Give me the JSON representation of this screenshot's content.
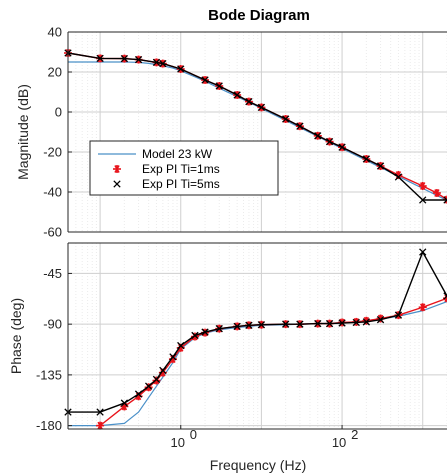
{
  "chart_data": {
    "type": "line",
    "title": "Bode Diagram",
    "xlabel": "Frequency  (Hz)",
    "x_scale": "log",
    "xlim": [
      0.04,
      2000
    ],
    "x_tick_labels": [
      {
        "value": 1,
        "base": "10",
        "exp": "0"
      },
      {
        "value": 100,
        "base": "10",
        "exp": "2"
      }
    ],
    "grid": true,
    "legend_position": "middle-left",
    "colors": {
      "model": "#4a90c8",
      "ti1": "#e8131b",
      "ti5": "#000000"
    },
    "panels": [
      {
        "name": "magnitude",
        "ylabel": "Magnitude (dB)",
        "ylim": [
          -60,
          40
        ],
        "yticks": [
          40,
          20,
          0,
          -20,
          -40,
          -60
        ],
        "series": [
          {
            "name": "Model 23 kW",
            "style": "line",
            "x": [
              0.04,
              0.1,
              0.2,
              0.3,
              0.4,
              0.5,
              0.6,
              0.7,
              0.8,
              1,
              1.5,
              2,
              3,
              5,
              7,
              10,
              20,
              30,
              50,
              70,
              100,
              200,
              300,
              500,
              700,
              1000,
              1500,
              2000
            ],
            "y": [
              25,
              25,
              25,
              24.8,
              24.3,
              23.7,
              23.1,
              22.5,
              22,
              20.6,
              17.6,
              15.4,
              11.9,
              7.7,
              4.9,
              1.8,
              -4.2,
              -7.8,
              -12.2,
              -15.2,
              -18.2,
              -24.2,
              -27.7,
              -32.2,
              -35.1,
              -38.2,
              -41.7,
              -44.2
            ]
          },
          {
            "name": "Exp PI Ti=1ms",
            "style": "marker-line",
            "marker": "asterisk",
            "x": [
              0.04,
              0.1,
              0.2,
              0.3,
              0.5,
              0.6,
              1,
              2,
              3,
              5,
              7,
              10,
              20,
              30,
              50,
              70,
              100,
              200,
              300,
              500,
              1000,
              1500,
              2000
            ],
            "y": [
              29.5,
              26.8,
              26.7,
              26.2,
              24.8,
              24.2,
              21.5,
              16,
              13,
              8.5,
              5.2,
              2.3,
              -3.5,
              -7.1,
              -11.9,
              -14.8,
              -17.6,
              -23.5,
              -27,
              -31.5,
              -37,
              -40.5,
              -43.8
            ]
          },
          {
            "name": "Exp PI Ti=5ms",
            "style": "marker-line",
            "marker": "x",
            "x": [
              0.04,
              0.1,
              0.2,
              0.3,
              0.5,
              0.6,
              1,
              2,
              3,
              5,
              7,
              10,
              20,
              30,
              50,
              70,
              100,
              200,
              300,
              500,
              1000,
              2000
            ],
            "y": [
              29.5,
              26.8,
              26.7,
              26.2,
              24.8,
              24.2,
              21.5,
              16,
              13,
              8.5,
              5.2,
              2.3,
              -3.5,
              -7.1,
              -11.9,
              -14.8,
              -17.6,
              -23.5,
              -27,
              -32.5,
              -44,
              -44
            ]
          }
        ]
      },
      {
        "name": "phase",
        "ylabel": "Phase (deg)",
        "ylim": [
          -183,
          -18
        ],
        "yticks": [
          -45,
          -90,
          -135,
          -180
        ],
        "series": [
          {
            "name": "Model 23 kW",
            "style": "line",
            "x": [
              0.04,
              0.1,
              0.2,
              0.3,
              0.4,
              0.5,
              0.6,
              0.8,
              1,
              1.5,
              2,
              3,
              5,
              7,
              10,
              20,
              30,
              50,
              100,
              200,
              500,
              1000,
              2000
            ],
            "y": [
              -180,
              -180,
              -178,
              -168,
              -155,
              -145,
              -137,
              -124,
              -112,
              -102,
              -98,
              -95,
              -93,
              -92,
              -91,
              -90.5,
              -90,
              -89.5,
              -89,
              -87,
              -83,
              -78,
              -70
            ]
          },
          {
            "name": "Exp PI Ti=1ms",
            "style": "marker-line",
            "marker": "asterisk",
            "x": [
              0.1,
              0.2,
              0.3,
              0.4,
              0.5,
              0.6,
              0.8,
              1,
              1.5,
              2,
              3,
              5,
              7,
              10,
              20,
              30,
              50,
              70,
              100,
              150,
              200,
              300,
              500,
              1000,
              2000
            ],
            "y": [
              -180,
              -163,
              -154,
              -146,
              -140,
              -133,
              -121,
              -111,
              -101,
              -97.5,
              -94,
              -92,
              -91,
              -90.5,
              -90,
              -90,
              -89.5,
              -89.5,
              -88.5,
              -88,
              -87,
              -85,
              -82,
              -75,
              -67
            ]
          },
          {
            "name": "Exp PI Ti=5ms",
            "style": "marker-line",
            "marker": "x",
            "x": [
              0.04,
              0.1,
              0.2,
              0.3,
              0.4,
              0.5,
              0.6,
              0.8,
              1,
              1.5,
              2,
              3,
              5,
              7,
              10,
              20,
              30,
              50,
              70,
              100,
              150,
              200,
              300,
              500,
              1000,
              2000
            ],
            "y": [
              -168,
              -168,
              -160,
              -152,
              -145,
              -139,
              -131,
              -119,
              -109,
              -100,
              -97,
              -94,
              -92,
              -91,
              -90.5,
              -90,
              -90,
              -89.5,
              -89.5,
              -89,
              -88.5,
              -88,
              -86,
              -82,
              -26,
              -65
            ]
          }
        ]
      }
    ]
  }
}
